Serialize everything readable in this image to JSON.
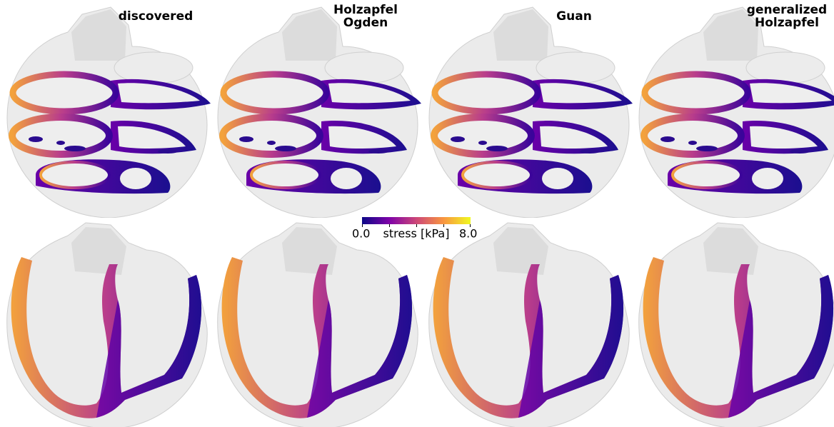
{
  "panels": [
    {
      "title": [
        "discovered"
      ]
    },
    {
      "title": [
        "Holzapfel",
        "Ogden"
      ]
    },
    {
      "title": [
        "Guan"
      ]
    },
    {
      "title": [
        "generalized",
        "Holzapfel"
      ]
    }
  ],
  "colorbar": {
    "min_label": "0.0",
    "label": "stress [kPa]",
    "max_label": "8.0"
  }
}
